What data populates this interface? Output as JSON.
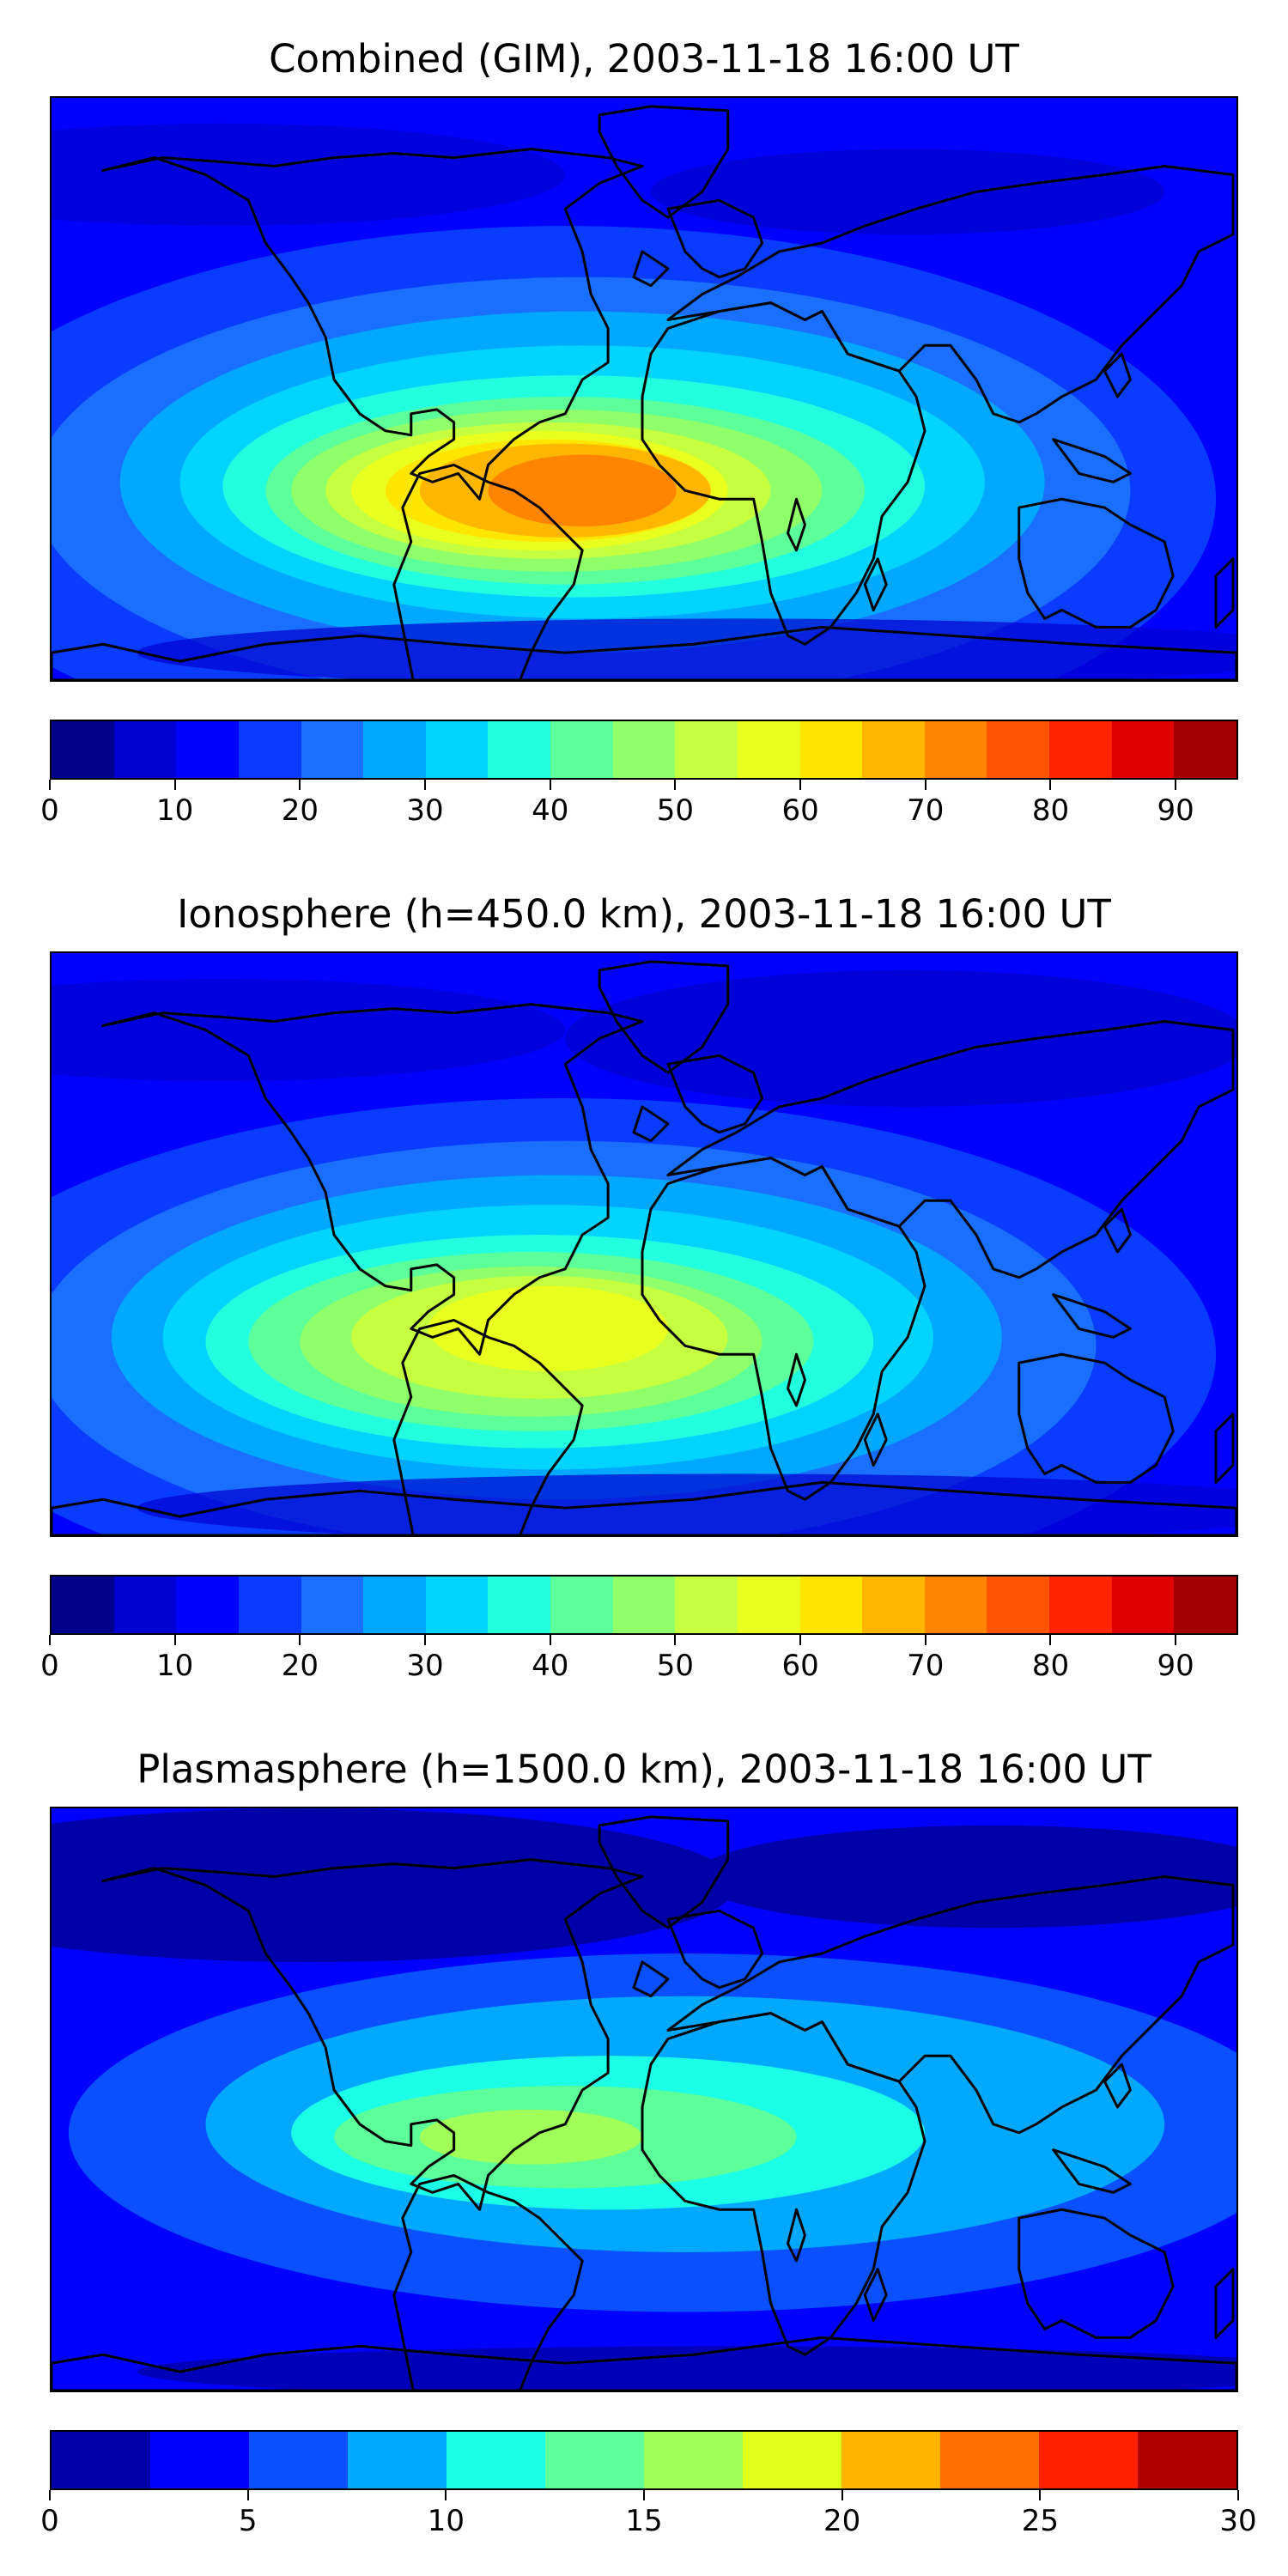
{
  "panels": [
    {
      "title": "Combined (GIM), 2003-11-18 16:00 UT",
      "colorbar": {
        "colors": [
          "#00008b",
          "#0000d0",
          "#0000ff",
          "#0a3cff",
          "#1a6fff",
          "#00a8ff",
          "#00d4ff",
          "#22ffdf",
          "#5cff9a",
          "#8fff6a",
          "#c6ff40",
          "#e9ff1e",
          "#ffe600",
          "#ffb600",
          "#ff8500",
          "#ff5500",
          "#ff2500",
          "#e00000",
          "#a00000"
        ],
        "ticks": [
          "0",
          "10",
          "20",
          "30",
          "40",
          "50",
          "60",
          "70",
          "80",
          "90"
        ],
        "tick_values": [
          0,
          10,
          20,
          30,
          40,
          50,
          60,
          70,
          80,
          90
        ],
        "range": [
          0,
          95
        ]
      }
    },
    {
      "title": "Ionosphere  (h=450.0 km), 2003-11-18 16:00 UT",
      "colorbar": {
        "colors": [
          "#00008b",
          "#0000d0",
          "#0000ff",
          "#0a3cff",
          "#1a6fff",
          "#00a8ff",
          "#00d4ff",
          "#22ffdf",
          "#5cff9a",
          "#8fff6a",
          "#c6ff40",
          "#e9ff1e",
          "#ffe600",
          "#ffb600",
          "#ff8500",
          "#ff5500",
          "#ff2500",
          "#e00000",
          "#a00000"
        ],
        "ticks": [
          "0",
          "10",
          "20",
          "30",
          "40",
          "50",
          "60",
          "70",
          "80",
          "90"
        ],
        "tick_values": [
          0,
          10,
          20,
          30,
          40,
          50,
          60,
          70,
          80,
          90
        ],
        "range": [
          0,
          95
        ]
      }
    },
    {
      "title": "Plasmasphere (h=1500.0 km), 2003-11-18 16:00 UT",
      "colorbar": {
        "colors": [
          "#0000a8",
          "#0000ff",
          "#0a50ff",
          "#00a8ff",
          "#1affe5",
          "#5cff9a",
          "#a0ff58",
          "#e0ff1a",
          "#ffb400",
          "#ff6e00",
          "#ff2000",
          "#b00000"
        ],
        "ticks": [
          "0",
          "5",
          "10",
          "15",
          "20",
          "25",
          "30"
        ],
        "tick_values": [
          0,
          5,
          10,
          15,
          20,
          25,
          30
        ],
        "range": [
          0,
          30
        ]
      }
    }
  ]
}
